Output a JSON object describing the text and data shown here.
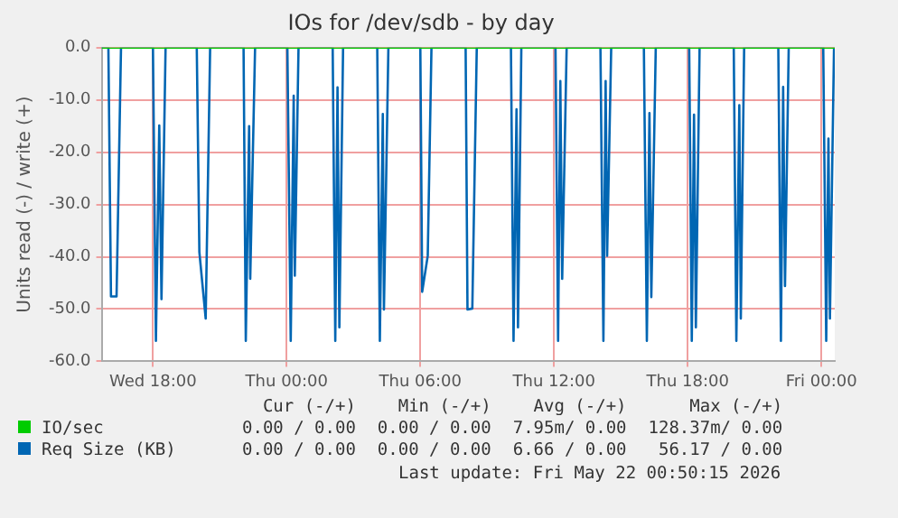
{
  "chart_data": {
    "type": "line",
    "title": "IOs for /dev/sdb - by day",
    "ylabel": "Units read (-) / write (+)",
    "xlim": [
      "2026-05-20T15:42",
      "2026-05-22T00:36"
    ],
    "ylim": [
      -60,
      0
    ],
    "xticks": [
      {
        "value": "2026-05-20T18:00",
        "label": "Wed 18:00"
      },
      {
        "value": "2026-05-21T00:00",
        "label": "Thu 00:00"
      },
      {
        "value": "2026-05-21T06:00",
        "label": "Thu 06:00"
      },
      {
        "value": "2026-05-21T12:00",
        "label": "Thu 12:00"
      },
      {
        "value": "2026-05-21T18:00",
        "label": "Thu 18:00"
      },
      {
        "value": "2026-05-22T00:00",
        "label": "Fri 00:00"
      }
    ],
    "yticks": [
      {
        "value": 0,
        "label": "0.0"
      },
      {
        "value": -10,
        "label": "-10.0"
      },
      {
        "value": -20,
        "label": "-20.0"
      },
      {
        "value": -30,
        "label": "-30.0"
      },
      {
        "value": -40,
        "label": "-40.0"
      },
      {
        "value": -50,
        "label": "-50.0"
      },
      {
        "value": -60,
        "label": "-60.0"
      }
    ],
    "grid": true,
    "legend": "bottom",
    "marker": "none",
    "line_style": "solid",
    "series": [
      {
        "name": "IO/sec",
        "color": "#00cc00",
        "x": [
          "2026-05-20T15:42",
          "2026-05-22T00:36"
        ],
        "values": [
          0,
          0
        ]
      },
      {
        "name": "Req Size (KB)",
        "color": "#0066b3",
        "x": [
          "2026-05-20T15:42",
          "2026-05-20T16:00",
          "2026-05-20T16:07",
          "2026-05-20T16:22",
          "2026-05-20T16:34",
          "2026-05-20T18:00",
          "2026-05-20T18:08",
          "2026-05-20T18:17",
          "2026-05-20T18:23",
          "2026-05-20T18:34",
          "2026-05-20T19:58",
          "2026-05-20T20:05",
          "2026-05-20T20:22",
          "2026-05-20T20:34",
          "2026-05-20T22:04",
          "2026-05-20T22:10",
          "2026-05-20T22:19",
          "2026-05-20T22:22",
          "2026-05-20T22:35",
          "2026-05-21T00:02",
          "2026-05-21T00:11",
          "2026-05-21T00:19",
          "2026-05-21T00:22",
          "2026-05-21T00:32",
          "2026-05-21T02:04",
          "2026-05-21T02:11",
          "2026-05-21T02:17",
          "2026-05-21T02:22",
          "2026-05-21T02:32",
          "2026-05-21T04:04",
          "2026-05-21T04:11",
          "2026-05-21T04:19",
          "2026-05-21T04:22",
          "2026-05-21T04:34",
          "2026-05-21T06:00",
          "2026-05-21T06:05",
          "2026-05-21T06:20",
          "2026-05-21T06:30",
          "2026-05-21T08:02",
          "2026-05-21T08:07",
          "2026-05-21T08:20",
          "2026-05-21T08:32",
          "2026-05-21T10:04",
          "2026-05-21T10:11",
          "2026-05-21T10:19",
          "2026-05-21T10:23",
          "2026-05-21T10:32",
          "2026-05-21T12:04",
          "2026-05-21T12:11",
          "2026-05-21T12:17",
          "2026-05-21T12:22",
          "2026-05-21T12:34",
          "2026-05-21T14:05",
          "2026-05-21T14:13",
          "2026-05-21T14:19",
          "2026-05-21T14:23",
          "2026-05-21T14:34",
          "2026-05-21T16:02",
          "2026-05-21T16:10",
          "2026-05-21T16:17",
          "2026-05-21T16:22",
          "2026-05-21T16:34",
          "2026-05-21T18:04",
          "2026-05-21T18:11",
          "2026-05-21T18:17",
          "2026-05-21T18:22",
          "2026-05-21T18:32",
          "2026-05-21T20:04",
          "2026-05-21T20:11",
          "2026-05-21T20:19",
          "2026-05-21T20:23",
          "2026-05-21T20:32",
          "2026-05-21T22:04",
          "2026-05-21T22:11",
          "2026-05-21T22:17",
          "2026-05-21T22:22",
          "2026-05-21T22:32",
          "2026-05-22T00:05",
          "2026-05-22T00:13",
          "2026-05-22T00:19",
          "2026-05-22T00:23",
          "2026-05-22T00:34"
        ],
        "values": [
          0,
          0,
          -47.6,
          -47.6,
          0,
          0,
          -56.1,
          -14.9,
          -48.1,
          0,
          0,
          -39.1,
          -51.8,
          0,
          0,
          -56.1,
          -15,
          -44.2,
          0,
          0,
          -56.1,
          -9.2,
          -43.6,
          0,
          0,
          -56.1,
          -7.6,
          -53.5,
          0,
          0,
          -56.1,
          -12.7,
          -50.1,
          0,
          0,
          -46.7,
          -39.8,
          0,
          0,
          -50.1,
          -49.9,
          0,
          0,
          -56.1,
          -11.8,
          -53.5,
          0,
          0,
          -56.1,
          -6.4,
          -44.2,
          0,
          0,
          -56.1,
          -6.4,
          -39.8,
          0,
          0,
          -56.1,
          -12.5,
          -47.7,
          0,
          0,
          -56.1,
          -12.8,
          -53.5,
          0,
          0,
          -56.1,
          -11,
          -51.8,
          0,
          0,
          -56.1,
          -7.5,
          -45.6,
          0,
          0,
          -56.1,
          -17.4,
          -51.8,
          0
        ]
      }
    ],
    "annotations": [
      "Cur (-/+)",
      "Min (-/+)",
      "Avg (-/+)",
      "Max (-/+)",
      "0.00 / 0.00",
      "0.00 / 0.00",
      "7.95m/ 0.00",
      "128.37m/ 0.00",
      "0.00 / 0.00",
      "0.00 / 0.00",
      "6.66 / 0.00",
      "56.17 / 0.00",
      "Last update: Fri May 22 00:50:15 2026"
    ]
  }
}
